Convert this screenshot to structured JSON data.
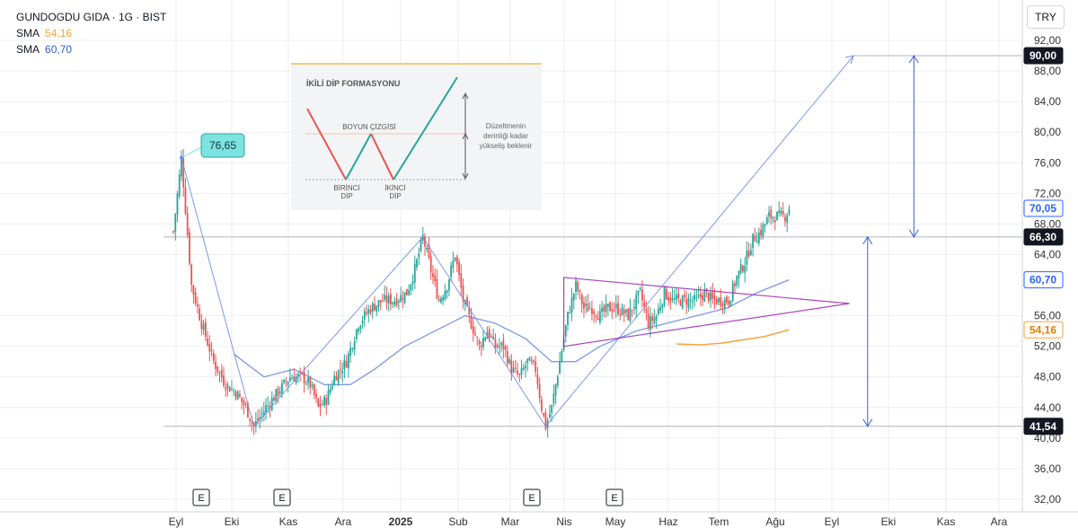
{
  "header": {
    "symbol_line": "GUNDOGDU GIDA · 1G · BIST",
    "sma1_label": "SMA",
    "sma1_value": "54,16",
    "sma2_label": "SMA",
    "sma2_value": "60,70",
    "currency": "TRY"
  },
  "colors": {
    "up": "#26a69a",
    "down": "#ef5350",
    "sma_fast": "#f7a23b",
    "sma_slow": "#5b7fe0",
    "trend": "#6f8fea",
    "triangle": "#9c27b0",
    "annotation_box": "#7de3e0",
    "grid": "#eceef2"
  },
  "chart_data": {
    "type": "candlestick",
    "title": "GUNDOGDU GIDA · 1G · BIST",
    "ylim": [
      32,
      94
    ],
    "y_ticks": [
      "92,00",
      "88,00",
      "84,00",
      "80,00",
      "76,00",
      "72,00",
      "68,00",
      "64,00",
      "56,00",
      "52,00",
      "48,00",
      "44,00",
      "40,00",
      "36,00",
      "32,00"
    ],
    "x_ticks": [
      "Eyl",
      "Eki",
      "Kas",
      "Ara",
      "2025",
      "Sub",
      "Mar",
      "Nis",
      "May",
      "Haz",
      "Tem",
      "Ağu",
      "Eyl",
      "Eki",
      "Kas",
      "Ara"
    ],
    "price_labels": [
      {
        "value": 90.0,
        "text": "90,00",
        "style": "dark"
      },
      {
        "value": 70.05,
        "text": "70,05",
        "style": "blue"
      },
      {
        "value": 66.3,
        "text": "66,30",
        "style": "dark"
      },
      {
        "value": 60.7,
        "text": "60,70",
        "style": "blue"
      },
      {
        "value": 54.16,
        "text": "54,16",
        "style": "orange"
      },
      {
        "value": 41.54,
        "text": "41,54",
        "style": "dark"
      }
    ],
    "peak_label": "76,65",
    "earnings_markers": [
      "E",
      "E",
      "E",
      "E"
    ],
    "path_points": [
      [
        0,
        67
      ],
      [
        4,
        76.65
      ],
      [
        9,
        60
      ],
      [
        14,
        55
      ],
      [
        20,
        50
      ],
      [
        26,
        47
      ],
      [
        31,
        46
      ],
      [
        36,
        44
      ],
      [
        40,
        41.54
      ],
      [
        46,
        44
      ],
      [
        52,
        46
      ],
      [
        58,
        48
      ],
      [
        64,
        48
      ],
      [
        68,
        47
      ],
      [
        72,
        44
      ],
      [
        76,
        45
      ],
      [
        80,
        48
      ],
      [
        86,
        50
      ],
      [
        92,
        55
      ],
      [
        98,
        57
      ],
      [
        104,
        58
      ],
      [
        110,
        58
      ],
      [
        116,
        59
      ],
      [
        120,
        62
      ],
      [
        124,
        66.3
      ],
      [
        128,
        62
      ],
      [
        132,
        58
      ],
      [
        136,
        60
      ],
      [
        140,
        64
      ],
      [
        144,
        58
      ],
      [
        148,
        55
      ],
      [
        152,
        52
      ],
      [
        156,
        54
      ],
      [
        160,
        52
      ],
      [
        164,
        52
      ],
      [
        168,
        49
      ],
      [
        172,
        48
      ],
      [
        176,
        50
      ],
      [
        180,
        49
      ],
      [
        183,
        44
      ],
      [
        185,
        41.54
      ],
      [
        188,
        44
      ],
      [
        192,
        50
      ],
      [
        196,
        56
      ],
      [
        200,
        60
      ],
      [
        204,
        57
      ],
      [
        208,
        57
      ],
      [
        212,
        56
      ],
      [
        216,
        57
      ],
      [
        220,
        57
      ],
      [
        226,
        56
      ],
      [
        232,
        59
      ],
      [
        236,
        55
      ],
      [
        240,
        56
      ],
      [
        244,
        59
      ],
      [
        248,
        58
      ],
      [
        252,
        58
      ],
      [
        256,
        58
      ],
      [
        260,
        58
      ],
      [
        264,
        59
      ],
      [
        268,
        58
      ],
      [
        272,
        58
      ],
      [
        276,
        58
      ],
      [
        280,
        61
      ],
      [
        284,
        63
      ],
      [
        288,
        66
      ],
      [
        292,
        67
      ],
      [
        296,
        69
      ],
      [
        300,
        69
      ],
      [
        304,
        69
      ],
      [
        306,
        70.05
      ]
    ],
    "sma_slow_points": [
      [
        30,
        51
      ],
      [
        45,
        48
      ],
      [
        60,
        49
      ],
      [
        75,
        47
      ],
      [
        88,
        47
      ],
      [
        100,
        49
      ],
      [
        115,
        52
      ],
      [
        130,
        54
      ],
      [
        145,
        56
      ],
      [
        160,
        55
      ],
      [
        175,
        53
      ],
      [
        188,
        50
      ],
      [
        200,
        50
      ],
      [
        212,
        52
      ],
      [
        230,
        54
      ],
      [
        245,
        55
      ],
      [
        260,
        56
      ],
      [
        275,
        57
      ],
      [
        290,
        59
      ],
      [
        306,
        60.7
      ]
    ],
    "sma_fast_points": [
      [
        250,
        52.3
      ],
      [
        262,
        52.2
      ],
      [
        272,
        52.4
      ],
      [
        282,
        52.8
      ],
      [
        294,
        53.3
      ],
      [
        306,
        54.16
      ]
    ],
    "trend_lines": [
      [
        [
          4,
          76.65
        ],
        [
          40,
          41.54
        ]
      ],
      [
        [
          40,
          41.54
        ],
        [
          124,
          66.3
        ]
      ],
      [
        [
          124,
          66.3
        ],
        [
          185,
          41.54
        ]
      ],
      [
        [
          185,
          41.54
        ],
        [
          338,
          90
        ]
      ]
    ],
    "triangle": [
      [
        194,
        61
      ],
      [
        336,
        57.6
      ],
      [
        194,
        52
      ]
    ],
    "levels": [
      {
        "value": 90.0,
        "from": 338,
        "to": 400
      },
      {
        "value": 66.3,
        "from": -5,
        "to": 400
      },
      {
        "value": 41.54,
        "from": -5,
        "to": 400
      }
    ],
    "measure_arrows": [
      {
        "x": 345,
        "from": 41.54,
        "to": 66.3
      },
      {
        "x": 368,
        "from": 66.3,
        "to": 90
      }
    ],
    "inset": {
      "title": "İKİLİ DİP FORMASYONU",
      "neckline": "BOYUN ÇİZGİSİ",
      "first_dip_1": "BİRİNCİ",
      "first_dip_2": "DİP",
      "second_dip_1": "İKİNCİ",
      "second_dip_2": "DİP",
      "note_1": "Düzeltmenin",
      "note_2": "derinliği kadar",
      "note_3": "yükseliş beklenir"
    }
  }
}
